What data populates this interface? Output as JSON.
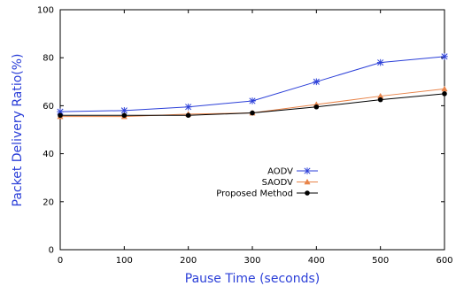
{
  "chart_data": {
    "type": "line",
    "title": "",
    "xlabel": "Pause Time (seconds)",
    "ylabel": "Packet Delivery Ratio(%)",
    "xlim": [
      0,
      600
    ],
    "ylim": [
      0,
      100
    ],
    "x_ticks": [
      "0",
      "100",
      "200",
      "300",
      "400",
      "500",
      "600"
    ],
    "y_ticks": [
      "0",
      "20",
      "40",
      "60",
      "80",
      "100"
    ],
    "x": [
      0,
      100,
      200,
      300,
      400,
      500,
      600
    ],
    "grid": false,
    "legend_position": "lower-right",
    "series": [
      {
        "name": "AODV",
        "values": [
          57.5,
          58,
          59.5,
          62,
          70,
          78,
          80.5
        ],
        "color": "#2b3fd8",
        "marker": "star"
      },
      {
        "name": "SAODV",
        "values": [
          55.5,
          55.5,
          56.5,
          57,
          60.5,
          64,
          67
        ],
        "color": "#e8844a",
        "marker": "triangle"
      },
      {
        "name": "Proposed Method",
        "values": [
          56,
          56,
          56,
          57,
          59.5,
          62.5,
          65
        ],
        "color": "#000000",
        "marker": "circle"
      }
    ]
  }
}
